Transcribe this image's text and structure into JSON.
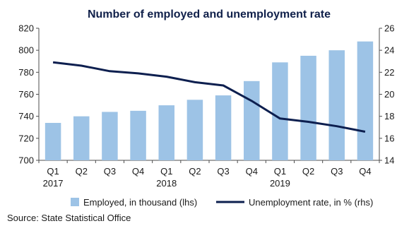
{
  "chart_data": {
    "type": "bar",
    "title": "Number of employed and unemployment rate",
    "categories": [
      "Q1",
      "Q2",
      "Q3",
      "Q4",
      "Q1",
      "Q2",
      "Q3",
      "Q4",
      "Q1",
      "Q2",
      "Q3",
      "Q4"
    ],
    "years": [
      {
        "label": "2017",
        "index": 0
      },
      {
        "label": "2018",
        "index": 4
      },
      {
        "label": "2019",
        "index": 8
      }
    ],
    "series": [
      {
        "name": "Employed, in thousand (lhs)",
        "type": "bar",
        "axis": "left",
        "color": "#9dc3e6",
        "values": [
          734,
          740,
          744,
          745,
          750,
          755,
          759,
          772,
          789,
          795,
          800,
          808
        ]
      },
      {
        "name": "Unemployment rate, in % (rhs)",
        "type": "line",
        "axis": "right",
        "color": "#0d1f4f",
        "values": [
          22.9,
          22.6,
          22.1,
          21.9,
          21.6,
          21.1,
          20.8,
          19.4,
          17.8,
          17.5,
          17.1,
          16.6
        ]
      }
    ],
    "ylim_left": [
      700,
      820
    ],
    "yticks_left": [
      700,
      720,
      740,
      760,
      780,
      800,
      820
    ],
    "ylim_right": [
      14,
      26
    ],
    "yticks_right": [
      14,
      16,
      18,
      20,
      22,
      24,
      26
    ],
    "grid": false,
    "legend": "bottom"
  },
  "source": "Source: State Statistical Office"
}
